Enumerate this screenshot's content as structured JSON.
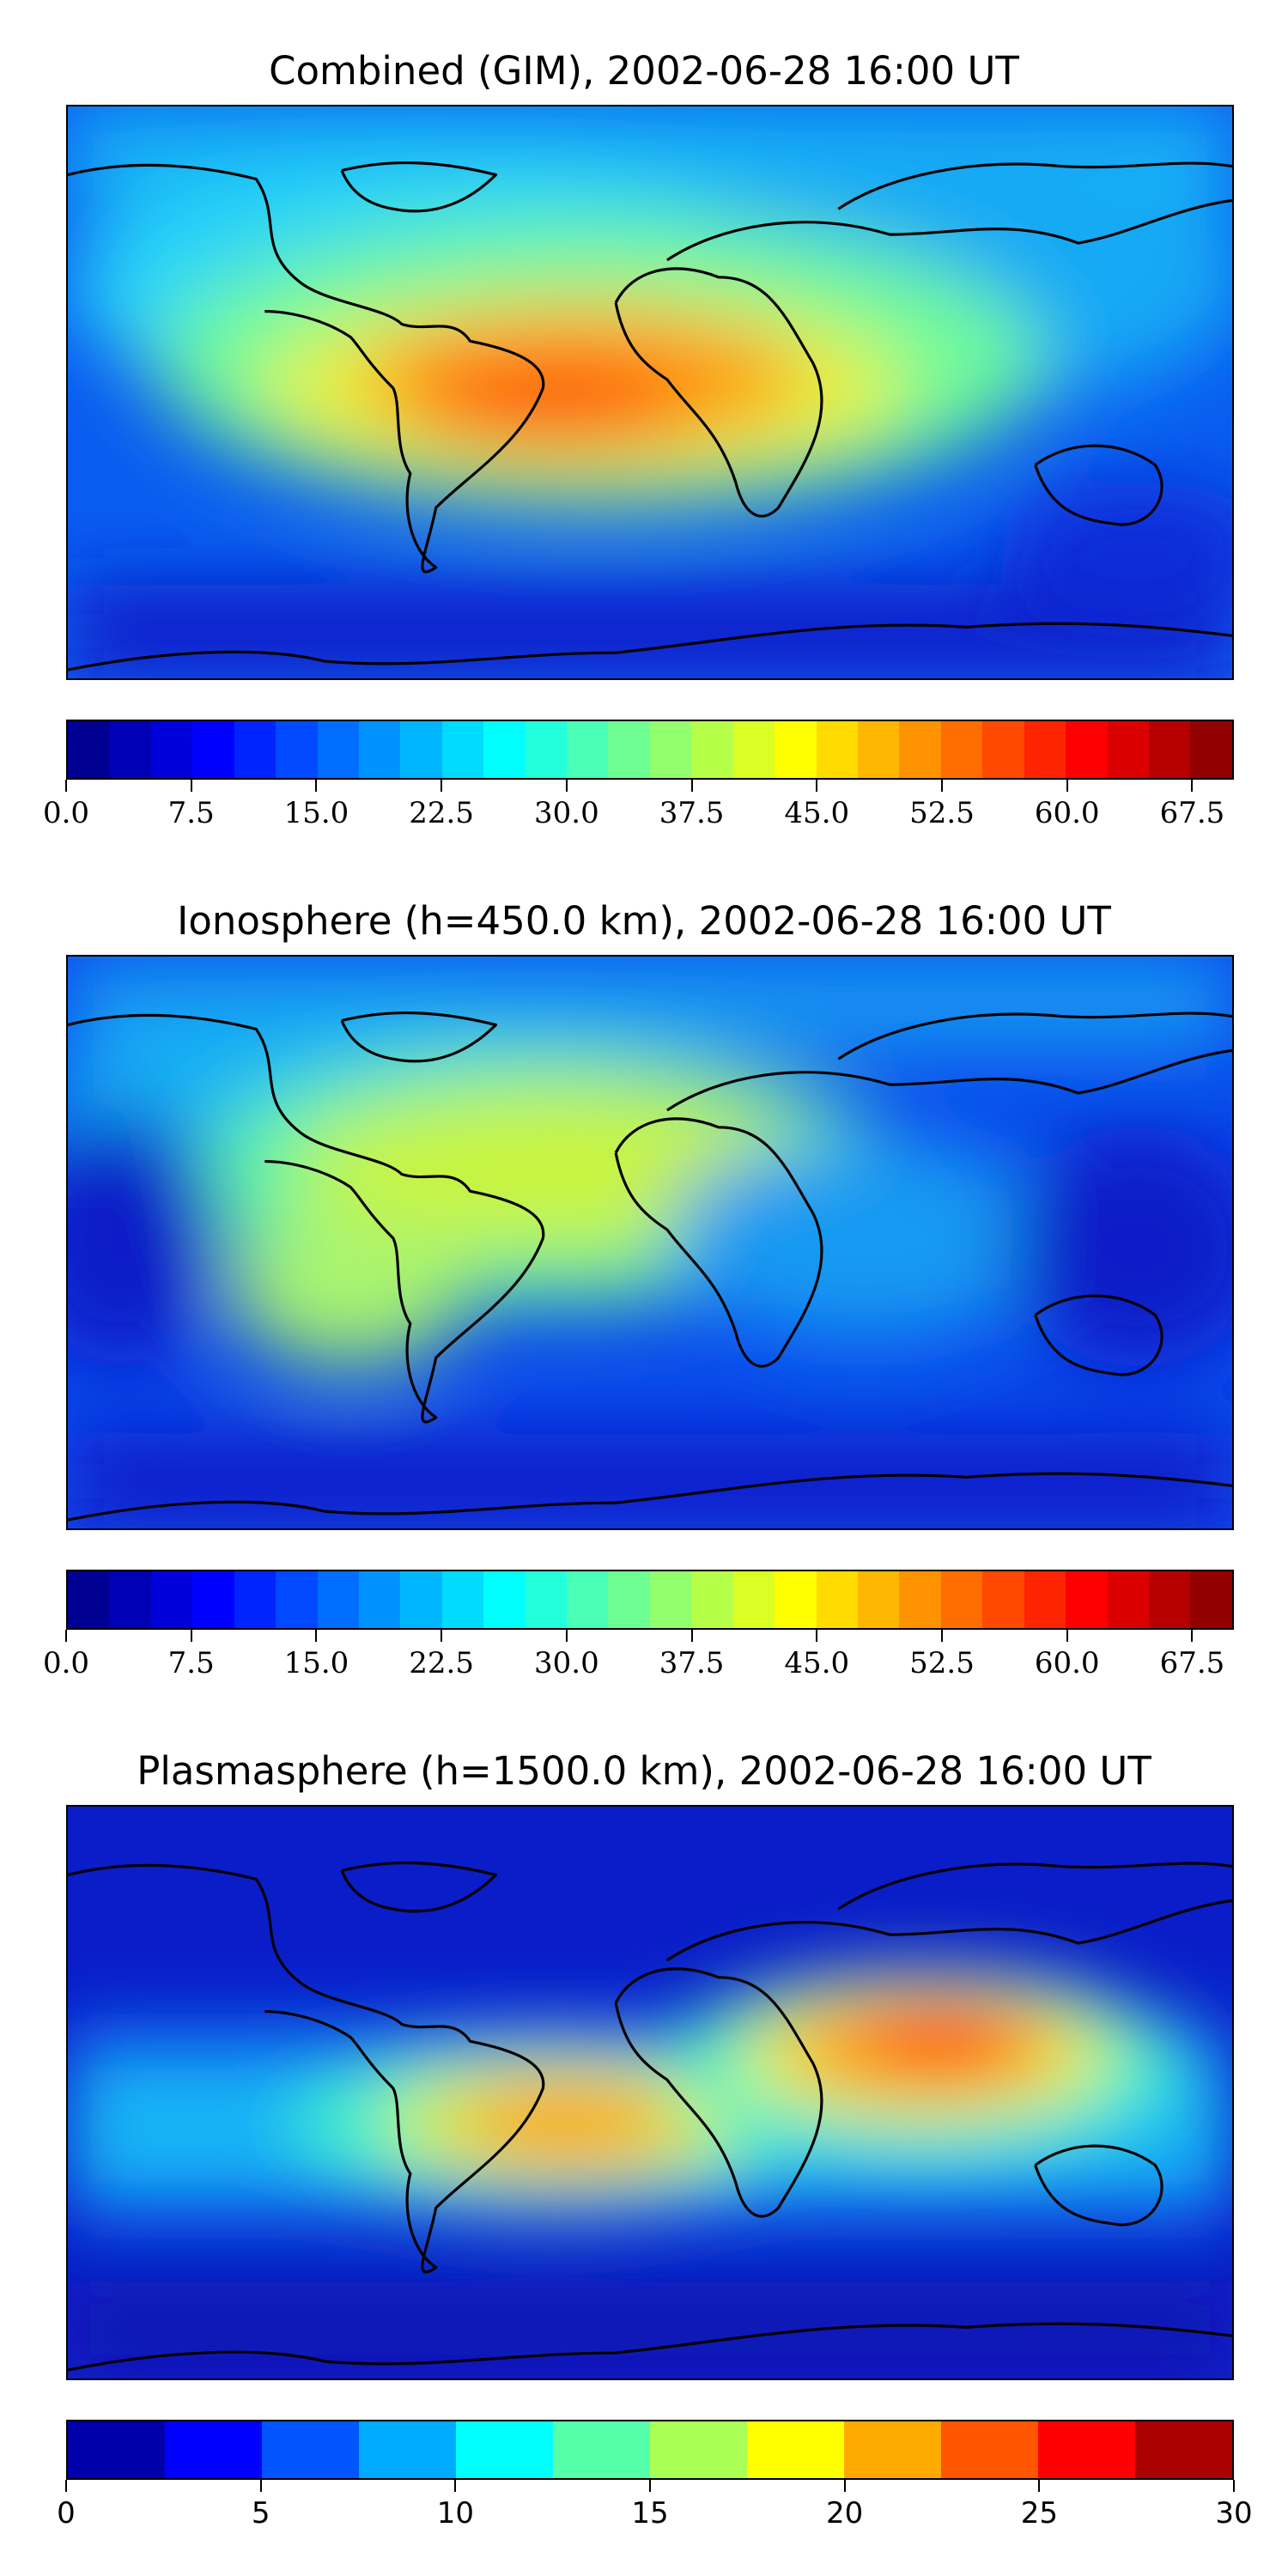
{
  "panels": [
    {
      "title": "Combined (GIM), 2002-06-28 16:00 UT",
      "colorbar": {
        "levels": 28,
        "ticks": [
          "0.0",
          "7.5",
          "15.0",
          "22.5",
          "30.0",
          "37.5",
          "45.0",
          "52.5",
          "60.0",
          "67.5"
        ],
        "tick_values": [
          0,
          7.5,
          15,
          22.5,
          30,
          37.5,
          45,
          52.5,
          60,
          67.5
        ],
        "vmin": 0,
        "vmax": 70
      }
    },
    {
      "title": "Ionosphere  (h=450.0 km), 2002-06-28 16:00 UT",
      "colorbar": {
        "levels": 28,
        "ticks": [
          "0.0",
          "7.5",
          "15.0",
          "22.5",
          "30.0",
          "37.5",
          "45.0",
          "52.5",
          "60.0",
          "67.5"
        ],
        "tick_values": [
          0,
          7.5,
          15,
          22.5,
          30,
          37.5,
          45,
          52.5,
          60,
          67.5
        ],
        "vmin": 0,
        "vmax": 70
      }
    },
    {
      "title": "Plasmasphere (h=1500.0 km), 2002-06-28 16:00 UT",
      "colorbar": {
        "levels": 12,
        "ticks": [
          "0",
          "5",
          "10",
          "15",
          "20",
          "25",
          "30"
        ],
        "tick_values": [
          0,
          5,
          10,
          15,
          20,
          25,
          30
        ],
        "vmin": 0,
        "vmax": 30
      }
    }
  ],
  "colormap": "jet"
}
